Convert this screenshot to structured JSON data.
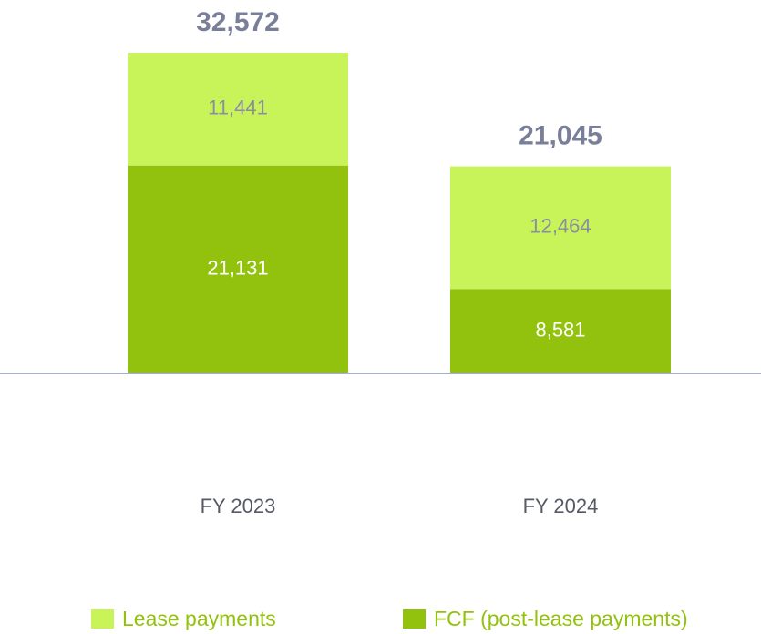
{
  "chart_data": {
    "type": "stacked_bar",
    "categories": [
      "FY 2023",
      "FY 2024"
    ],
    "series": [
      {
        "name": "FCF (post-lease payments)",
        "color": "#93c20e",
        "values": [
          21131,
          8581
        ],
        "value_labels": [
          "21,131",
          "8,581"
        ]
      },
      {
        "name": "Lease payments",
        "color": "#c8f45a",
        "values": [
          11441,
          12464
        ],
        "value_labels": [
          "11,441",
          "12,464"
        ]
      }
    ],
    "totals": [
      32572,
      21045
    ],
    "total_labels": [
      "32,572",
      "21,045"
    ],
    "legend_order": [
      1,
      0
    ],
    "ylim": [
      0,
      35000
    ],
    "grid": false,
    "legend": "bottom"
  }
}
